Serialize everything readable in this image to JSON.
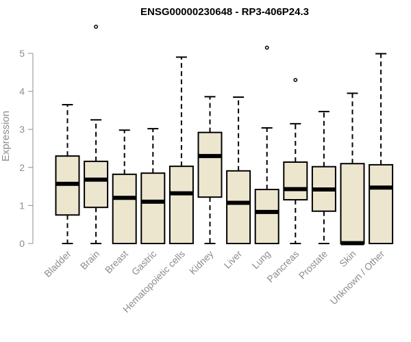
{
  "chart_data": {
    "type": "boxplot",
    "title": "ENSG00000230648 - RP3-406P24.3",
    "xlabel": "",
    "ylabel": "Expression",
    "ylim": [
      0,
      5.5
    ],
    "yticks": [
      0,
      1,
      2,
      3,
      4,
      5
    ],
    "grid": false,
    "colors": {
      "box_fill": "#ede6cf",
      "stroke": "#000000",
      "axis": "#8c8c8c"
    },
    "categories": [
      "Bladder",
      "Brain",
      "Breast",
      "Gastric",
      "Hematopoietic cells",
      "Kidney",
      "Liver",
      "Lung",
      "Pancreas",
      "Prostate",
      "Skin",
      "Unknown / Other"
    ],
    "boxes": [
      {
        "min": 0,
        "q1": 0.75,
        "median": 1.57,
        "q3": 2.3,
        "max": 3.65,
        "outliers": []
      },
      {
        "min": 0,
        "q1": 0.95,
        "median": 1.68,
        "q3": 2.16,
        "max": 3.25,
        "outliers": [
          5.7
        ]
      },
      {
        "min": 0,
        "q1": 0,
        "median": 1.2,
        "q3": 1.82,
        "max": 2.98,
        "outliers": []
      },
      {
        "min": 0,
        "q1": 0,
        "median": 1.1,
        "q3": 1.85,
        "max": 3.02,
        "outliers": []
      },
      {
        "min": 0,
        "q1": 0,
        "median": 1.32,
        "q3": 2.03,
        "max": 4.9,
        "outliers": []
      },
      {
        "min": 0,
        "q1": 1.22,
        "median": 2.3,
        "q3": 2.92,
        "max": 3.86,
        "outliers": []
      },
      {
        "min": 0,
        "q1": 0,
        "median": 1.07,
        "q3": 1.91,
        "max": 3.85,
        "outliers": []
      },
      {
        "min": 0,
        "q1": 0,
        "median": 0.83,
        "q3": 1.42,
        "max": 3.04,
        "outliers": [
          5.15
        ]
      },
      {
        "min": 0,
        "q1": 1.15,
        "median": 1.43,
        "q3": 2.14,
        "max": 3.15,
        "outliers": [
          4.3
        ]
      },
      {
        "min": 0,
        "q1": 0.85,
        "median": 1.42,
        "q3": 2.02,
        "max": 3.47,
        "outliers": []
      },
      {
        "min": 0,
        "q1": 0,
        "median": 0.01,
        "q3": 2.1,
        "max": 3.95,
        "outliers": []
      },
      {
        "min": 0,
        "q1": 0,
        "median": 1.47,
        "q3": 2.07,
        "max": 4.99,
        "outliers": []
      }
    ]
  }
}
